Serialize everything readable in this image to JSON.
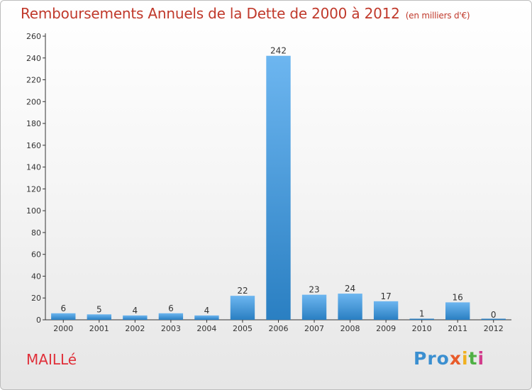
{
  "header": {
    "title": "Remboursements Annuels de la Dette de 2000 à 2012",
    "unit": "(en milliers d'€)"
  },
  "commune": "MAILLé",
  "logo": {
    "letters": [
      "Pro",
      "x",
      "i",
      "t",
      "i"
    ],
    "colors": [
      "#3b8fd0",
      "#e85b2a",
      "#f0b020",
      "#4fb044",
      "#d23c8c"
    ]
  },
  "colors": {
    "bar_light": "#6db6f0",
    "bar_dark": "#2a7fc2",
    "title": "#c0392b",
    "axis": "#333333"
  },
  "chart_data": {
    "type": "bar",
    "title": "Remboursements Annuels de la Dette de 2000 à 2012",
    "xlabel": "",
    "ylabel": "(en milliers d'€)",
    "categories": [
      "2000",
      "2001",
      "2002",
      "2003",
      "2004",
      "2005",
      "2006",
      "2007",
      "2008",
      "2009",
      "2010",
      "2011",
      "2012"
    ],
    "values": [
      6,
      5,
      4,
      6,
      4,
      22,
      242,
      23,
      24,
      17,
      1,
      16,
      0
    ],
    "labels": [
      "6",
      "5",
      "4",
      "6",
      "4",
      "22",
      "242",
      "23",
      "24",
      "17",
      "1",
      "16",
      "0"
    ],
    "ylim": [
      0,
      260
    ],
    "yticks": [
      0,
      20,
      40,
      60,
      80,
      100,
      120,
      140,
      160,
      180,
      200,
      220,
      240,
      260
    ],
    "ytick_labels": [
      "0",
      "20",
      "40",
      "60",
      "80",
      "100",
      "120",
      "140",
      "160",
      "180",
      "200",
      "220",
      "240",
      "260"
    ],
    "grid": false,
    "legend": "none"
  }
}
